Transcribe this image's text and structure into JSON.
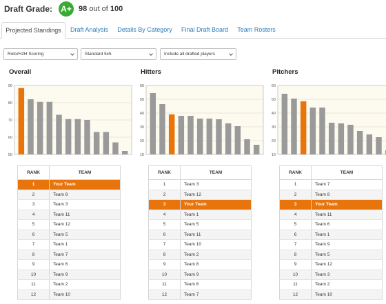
{
  "header": {
    "label": "Draft Grade:",
    "grade": "A+",
    "score": "98",
    "score_mid": "out of",
    "score_max": "100"
  },
  "tabs": [
    {
      "label": "Projected Standings",
      "active": true
    },
    {
      "label": "Draft Analysis"
    },
    {
      "label": "Details By Category"
    },
    {
      "label": "Final Draft Board"
    },
    {
      "label": "Team Rosters"
    }
  ],
  "filters": [
    {
      "value": "Roto/H2H Scoring"
    },
    {
      "value": "Standard 5x5"
    },
    {
      "value": "Include all drafted players"
    }
  ],
  "colors": {
    "highlight": "#e8740c",
    "bar": "#9a9a9a",
    "plot_bg": "#fdfbf0",
    "grade_badge": "#3aaa35"
  },
  "sections": [
    {
      "title": "Overall",
      "table_headers": [
        "RANK",
        "TEAM"
      ],
      "rows": [
        {
          "rank": "1",
          "team": "Your Team"
        },
        {
          "rank": "2",
          "team": "Team 8"
        },
        {
          "rank": "3",
          "team": "Team 3"
        },
        {
          "rank": "4",
          "team": "Team 11"
        },
        {
          "rank": "5",
          "team": "Team 12"
        },
        {
          "rank": "6",
          "team": "Team 5"
        },
        {
          "rank": "7",
          "team": "Team 1"
        },
        {
          "rank": "8",
          "team": "Team 7"
        },
        {
          "rank": "9",
          "team": "Team 6"
        },
        {
          "rank": "10",
          "team": "Team 9"
        },
        {
          "rank": "11",
          "team": "Team 2"
        },
        {
          "rank": "12",
          "team": "Team 10"
        }
      ]
    },
    {
      "title": "Hitters",
      "table_headers": [
        "RANK",
        "TEAM"
      ],
      "rows": [
        {
          "rank": "1",
          "team": "Team 3"
        },
        {
          "rank": "2",
          "team": "Team 12"
        },
        {
          "rank": "3",
          "team": "Your Team"
        },
        {
          "rank": "4",
          "team": "Team 1"
        },
        {
          "rank": "5",
          "team": "Team 5"
        },
        {
          "rank": "6",
          "team": "Team 11"
        },
        {
          "rank": "7",
          "team": "Team 10"
        },
        {
          "rank": "8",
          "team": "Team 2"
        },
        {
          "rank": "9",
          "team": "Team 8"
        },
        {
          "rank": "10",
          "team": "Team 9"
        },
        {
          "rank": "11",
          "team": "Team 6"
        },
        {
          "rank": "12",
          "team": "Team 7"
        }
      ]
    },
    {
      "title": "Pitchers",
      "table_headers": [
        "RANK",
        "TEAM"
      ],
      "rows": [
        {
          "rank": "1",
          "team": "Team 7"
        },
        {
          "rank": "2",
          "team": "Team 8"
        },
        {
          "rank": "3",
          "team": "Your Team"
        },
        {
          "rank": "4",
          "team": "Team 11"
        },
        {
          "rank": "5",
          "team": "Team 6"
        },
        {
          "rank": "6",
          "team": "Team 1"
        },
        {
          "rank": "7",
          "team": "Team 9"
        },
        {
          "rank": "8",
          "team": "Team 5"
        },
        {
          "rank": "9",
          "team": "Team 12"
        },
        {
          "rank": "10",
          "team": "Team 3"
        },
        {
          "rank": "11",
          "team": "Team 2"
        },
        {
          "rank": "12",
          "team": "Team 10"
        }
      ]
    }
  ],
  "chart_data": [
    {
      "type": "bar",
      "title": "Overall",
      "ylim": [
        50,
        90
      ],
      "yticks": [
        50,
        60,
        70,
        80,
        90
      ],
      "grid": true,
      "highlight_index": 0,
      "values": [
        88.5,
        82,
        80.5,
        80.5,
        73,
        70.5,
        70.5,
        70,
        63,
        63,
        57,
        52
      ]
    },
    {
      "type": "bar",
      "title": "Hitters",
      "ylim": [
        10,
        60
      ],
      "yticks": [
        10,
        20,
        30,
        40,
        50,
        60
      ],
      "grid": true,
      "highlight_index": 2,
      "values": [
        54.5,
        46.5,
        39,
        38,
        38,
        36,
        36,
        35.5,
        32.5,
        30.5,
        21,
        17
      ]
    },
    {
      "type": "bar",
      "title": "Pitchers",
      "ylim": [
        10,
        60
      ],
      "yticks": [
        10,
        20,
        30,
        40,
        50,
        60
      ],
      "grid": true,
      "highlight_index": 2,
      "values": [
        54,
        50.5,
        48.5,
        44,
        44,
        33,
        32.5,
        31.5,
        27,
        24.5,
        22.5,
        13
      ]
    }
  ]
}
